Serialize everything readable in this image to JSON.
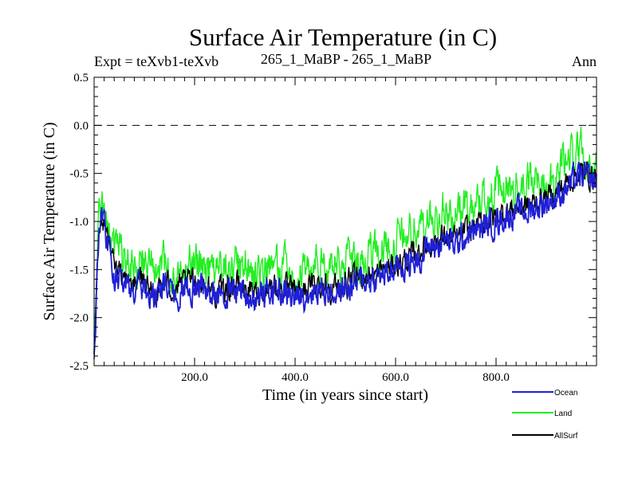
{
  "chart_data": {
    "type": "line",
    "title": "Surface Air Temperature (in C)",
    "subtitle_left": "Expt = teXvb1-teXvb",
    "subtitle_center": "265_1_MaBP - 265_1_MaBP",
    "subtitle_right": "Ann",
    "xlabel": "Time (in years since start)",
    "ylabel": "Surface Air Temperature (in C)",
    "xlim": [
      0,
      1000
    ],
    "ylim": [
      -2.5,
      0.5
    ],
    "x_ticks": [
      200,
      400,
      600,
      800
    ],
    "x_tick_labels": [
      "200.0",
      "400.0",
      "600.0",
      "800.0"
    ],
    "y_ticks": [
      0.5,
      0.0,
      -0.5,
      -1.0,
      -1.5,
      -2.0,
      -2.5
    ],
    "y_tick_labels": [
      "0.5",
      "0.0",
      "-0.5",
      "-1.0",
      "-1.5",
      "-2.0",
      "-2.5"
    ],
    "reference_line": {
      "y": 0.0,
      "style": "dashed"
    },
    "series": [
      {
        "name": "Ocean",
        "color": "#1f1fd6",
        "x": [
          0,
          10,
          20,
          40,
          60,
          80,
          100,
          120,
          140,
          160,
          180,
          200,
          220,
          240,
          260,
          280,
          300,
          320,
          340,
          360,
          380,
          400,
          420,
          440,
          460,
          480,
          500,
          520,
          540,
          560,
          580,
          600,
          620,
          640,
          660,
          680,
          700,
          720,
          740,
          760,
          780,
          800,
          820,
          840,
          860,
          880,
          900,
          920,
          940,
          960,
          980,
          1000
        ],
        "values": [
          -2.4,
          -1.1,
          -1.0,
          -1.55,
          -1.65,
          -1.7,
          -1.65,
          -1.8,
          -1.7,
          -1.75,
          -1.7,
          -1.65,
          -1.7,
          -1.8,
          -1.75,
          -1.7,
          -1.75,
          -1.8,
          -1.75,
          -1.7,
          -1.75,
          -1.8,
          -1.75,
          -1.7,
          -1.7,
          -1.75,
          -1.7,
          -1.65,
          -1.6,
          -1.6,
          -1.55,
          -1.5,
          -1.45,
          -1.4,
          -1.3,
          -1.25,
          -1.2,
          -1.25,
          -1.15,
          -1.1,
          -1.05,
          -1.0,
          -0.95,
          -0.9,
          -0.9,
          -0.85,
          -0.8,
          -0.75,
          -0.65,
          -0.55,
          -0.55,
          -0.6
        ]
      },
      {
        "name": "Land",
        "color": "#22ee22",
        "x": [
          0,
          10,
          20,
          40,
          60,
          80,
          100,
          120,
          140,
          160,
          180,
          200,
          220,
          240,
          260,
          280,
          300,
          320,
          340,
          360,
          380,
          400,
          420,
          440,
          460,
          480,
          500,
          520,
          540,
          560,
          580,
          600,
          620,
          640,
          660,
          680,
          700,
          720,
          740,
          760,
          780,
          800,
          820,
          840,
          860,
          880,
          900,
          920,
          940,
          960,
          980,
          1000
        ],
        "values": [
          -2.3,
          -1.0,
          -0.9,
          -1.35,
          -1.4,
          -1.45,
          -1.4,
          -1.55,
          -1.45,
          -1.5,
          -1.45,
          -1.4,
          -1.45,
          -1.55,
          -1.5,
          -1.45,
          -1.5,
          -1.55,
          -1.5,
          -1.45,
          -1.5,
          -1.55,
          -1.5,
          -1.45,
          -1.45,
          -1.5,
          -1.45,
          -1.4,
          -1.35,
          -1.3,
          -1.25,
          -1.2,
          -1.15,
          -1.1,
          -1.0,
          -0.95,
          -0.9,
          -0.95,
          -0.85,
          -0.8,
          -0.75,
          -0.7,
          -0.7,
          -0.65,
          -0.65,
          -0.6,
          -0.55,
          -0.5,
          -0.35,
          -0.25,
          -0.3,
          -0.4
        ]
      },
      {
        "name": "AllSurf",
        "color": "#000000",
        "x": [
          0,
          10,
          20,
          40,
          60,
          80,
          100,
          120,
          140,
          160,
          180,
          200,
          220,
          240,
          260,
          280,
          300,
          320,
          340,
          360,
          380,
          400,
          420,
          440,
          460,
          480,
          500,
          520,
          540,
          560,
          580,
          600,
          620,
          640,
          660,
          680,
          700,
          720,
          740,
          760,
          780,
          800,
          820,
          840,
          860,
          880,
          900,
          920,
          940,
          960,
          980,
          1000
        ],
        "values": [
          -2.35,
          -1.05,
          -0.95,
          -1.5,
          -1.6,
          -1.65,
          -1.6,
          -1.75,
          -1.65,
          -1.7,
          -1.65,
          -1.6,
          -1.65,
          -1.75,
          -1.7,
          -1.65,
          -1.7,
          -1.75,
          -1.7,
          -1.65,
          -1.7,
          -1.75,
          -1.7,
          -1.65,
          -1.65,
          -1.7,
          -1.65,
          -1.6,
          -1.55,
          -1.55,
          -1.5,
          -1.45,
          -1.4,
          -1.35,
          -1.25,
          -1.2,
          -1.15,
          -1.2,
          -1.1,
          -1.05,
          -1.0,
          -0.95,
          -0.9,
          -0.85,
          -0.85,
          -0.8,
          -0.75,
          -0.7,
          -0.6,
          -0.5,
          -0.5,
          -0.55
        ]
      }
    ],
    "legend": [
      "Ocean",
      "Land",
      "AllSurf"
    ]
  }
}
